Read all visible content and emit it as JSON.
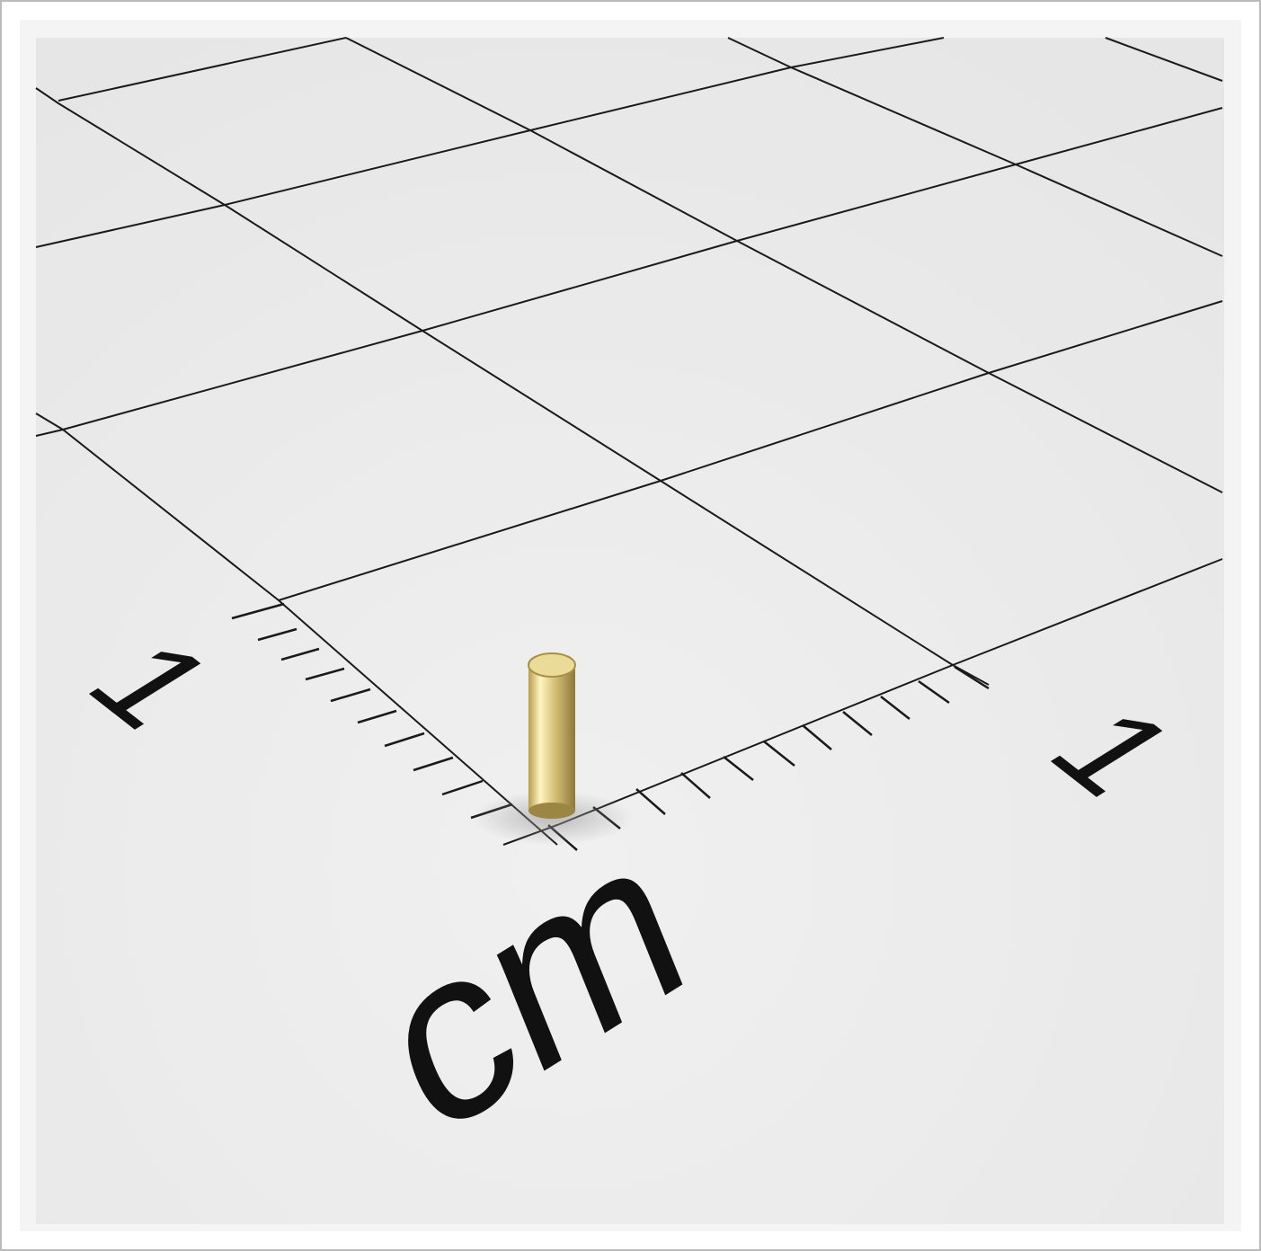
{
  "labels": {
    "left_axis": "1",
    "right_axis": "1",
    "unit": "cm"
  }
}
